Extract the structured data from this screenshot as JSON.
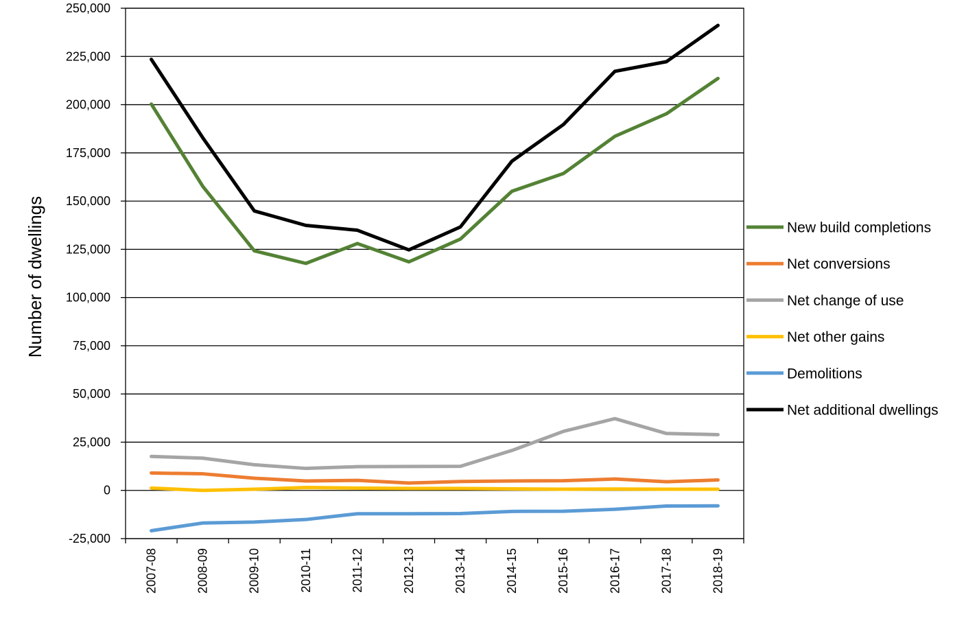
{
  "chart_data": {
    "type": "line",
    "title": "",
    "xlabel": "",
    "ylabel": "Number of dwellings",
    "ylim": [
      -25000,
      250000
    ],
    "ytick_step": 25000,
    "grid": "horizontal",
    "legend_position": "right",
    "categories": [
      "2007-08",
      "2008-09",
      "2009-10",
      "2010-11",
      "2011-12",
      "2012-13",
      "2013-14",
      "2014-15",
      "2015-16",
      "2016-17",
      "2017-18",
      "2018-19"
    ],
    "series": [
      {
        "name": "New build completions",
        "color": "#548235",
        "values": [
          200300,
          157600,
          124200,
          117700,
          128000,
          118500,
          130300,
          155100,
          164300,
          183600,
          195300,
          213600
        ]
      },
      {
        "name": "Net conversions",
        "color": "#ED7D31",
        "values": [
          9000,
          8600,
          6300,
          4900,
          5200,
          3800,
          4600,
          4900,
          5000,
          5900,
          4500,
          5400
        ]
      },
      {
        "name": "Net change of use",
        "color": "#A5A5A5",
        "values": [
          17600,
          16700,
          13300,
          11400,
          12300,
          12400,
          12500,
          20700,
          30600,
          37200,
          29500,
          28900
        ]
      },
      {
        "name": "Net other gains",
        "color": "#FFC000",
        "values": [
          1200,
          0,
          600,
          1500,
          1200,
          1000,
          1000,
          800,
          600,
          700,
          600,
          600
        ]
      },
      {
        "name": "Demolitions",
        "color": "#5B9BD5",
        "values": [
          -20900,
          -16900,
          -16400,
          -15100,
          -12100,
          -12100,
          -12000,
          -10900,
          -10800,
          -9800,
          -8100,
          -8000
        ]
      },
      {
        "name": "Net additional dwellings",
        "color": "#000000",
        "values": [
          223500,
          182800,
          144900,
          137400,
          134900,
          124700,
          136600,
          170700,
          189700,
          217300,
          222300,
          241100
        ]
      }
    ]
  }
}
